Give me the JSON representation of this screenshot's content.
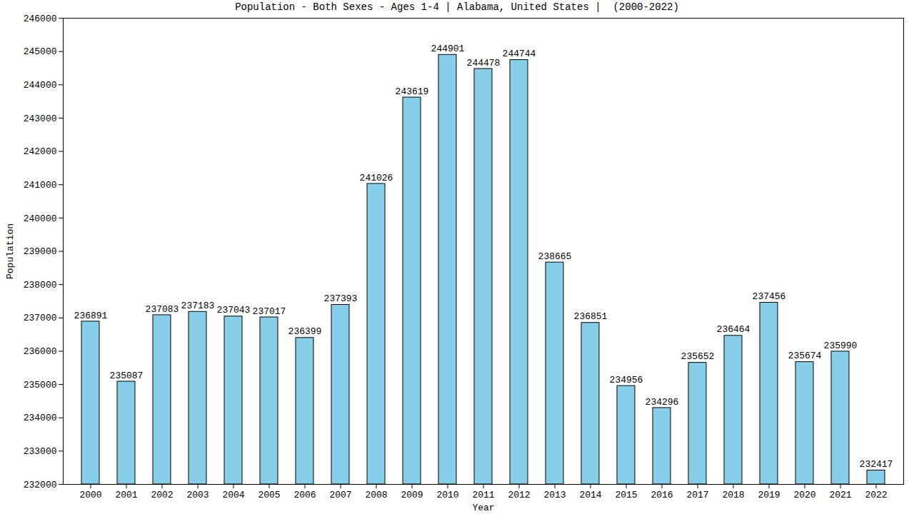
{
  "chart_data": {
    "type": "bar",
    "title": "Population - Both Sexes - Ages 1-4 | Alabama, United States |  (2000-2022)",
    "x_label": "Year",
    "y_label": "Population",
    "categories": [
      "2000",
      "2001",
      "2002",
      "2003",
      "2004",
      "2005",
      "2006",
      "2007",
      "2008",
      "2009",
      "2010",
      "2011",
      "2012",
      "2013",
      "2014",
      "2015",
      "2016",
      "2017",
      "2018",
      "2019",
      "2020",
      "2021",
      "2022"
    ],
    "values": [
      236891,
      235087,
      237083,
      237183,
      237043,
      237017,
      236399,
      237393,
      241026,
      243619,
      244901,
      244478,
      244744,
      238665,
      236851,
      234956,
      234296,
      235652,
      236464,
      237456,
      235674,
      235990,
      232417
    ],
    "color": "#87ceeb",
    "ylim": [
      232000,
      246000
    ],
    "yticks": [
      232000,
      233000,
      234000,
      235000,
      236000,
      237000,
      238000,
      239000,
      240000,
      241000,
      242000,
      243000,
      244000,
      245000,
      246000
    ],
    "grid": false,
    "data_labels": true
  }
}
